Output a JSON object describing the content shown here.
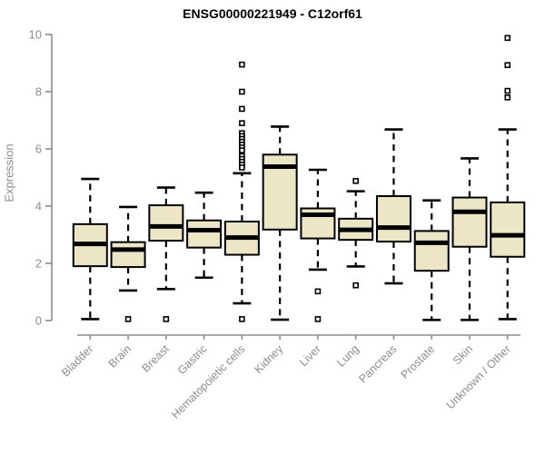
{
  "chart_data": {
    "type": "boxplot",
    "title": "ENSG00000221949 - C12orf61",
    "ylabel": "Expression",
    "ylim": [
      0,
      10
    ],
    "yticks": [
      0,
      2,
      4,
      6,
      8,
      10
    ],
    "grid": false,
    "legend": false,
    "categories": [
      "Bladder",
      "Brain",
      "Breast",
      "Gastric",
      "Hematopoietic cells",
      "Kidney",
      "Liver",
      "Lung",
      "Pancreas",
      "Prostate",
      "Skin",
      "Unknown / Other"
    ],
    "series": [
      {
        "category": "Bladder",
        "whisker_low": 0.05,
        "q1": 1.9,
        "median": 2.68,
        "q3": 3.37,
        "whisker_high": 4.95,
        "outliers": []
      },
      {
        "category": "Brain",
        "whisker_low": 1.05,
        "q1": 1.87,
        "median": 2.48,
        "q3": 2.74,
        "whisker_high": 3.97,
        "outliers": [
          0.05
        ]
      },
      {
        "category": "Breast",
        "whisker_low": 1.1,
        "q1": 2.79,
        "median": 3.29,
        "q3": 4.03,
        "whisker_high": 4.65,
        "outliers": [
          0.05
        ]
      },
      {
        "category": "Gastric",
        "whisker_low": 1.5,
        "q1": 2.55,
        "median": 3.16,
        "q3": 3.5,
        "whisker_high": 4.47,
        "outliers": []
      },
      {
        "category": "Hematopoietic cells",
        "whisker_low": 0.6,
        "q1": 2.3,
        "median": 2.9,
        "q3": 3.46,
        "whisker_high": 5.15,
        "outliers": [
          8.95,
          8.0,
          7.4,
          6.9,
          6.55,
          6.45,
          6.35,
          6.25,
          6.15,
          6.05,
          5.95,
          5.75,
          5.65,
          5.55,
          5.45,
          5.35,
          0.05
        ]
      },
      {
        "category": "Kidney",
        "whisker_low": 0.03,
        "q1": 3.18,
        "median": 5.38,
        "q3": 5.8,
        "whisker_high": 6.78,
        "outliers": []
      },
      {
        "category": "Liver",
        "whisker_low": 1.78,
        "q1": 2.87,
        "median": 3.7,
        "q3": 3.92,
        "whisker_high": 5.27,
        "outliers": [
          1.02,
          0.05
        ]
      },
      {
        "category": "Lung",
        "whisker_low": 1.89,
        "q1": 2.82,
        "median": 3.17,
        "q3": 3.56,
        "whisker_high": 4.52,
        "outliers": [
          4.88,
          1.23
        ]
      },
      {
        "category": "Pancreas",
        "whisker_low": 1.3,
        "q1": 2.76,
        "median": 3.25,
        "q3": 4.35,
        "whisker_high": 6.68,
        "outliers": []
      },
      {
        "category": "Prostate",
        "whisker_low": 0.02,
        "q1": 1.74,
        "median": 2.72,
        "q3": 3.13,
        "whisker_high": 4.2,
        "outliers": []
      },
      {
        "category": "Skin",
        "whisker_low": 0.02,
        "q1": 2.58,
        "median": 3.8,
        "q3": 4.3,
        "whisker_high": 5.67,
        "outliers": []
      },
      {
        "category": "Unknown / Other",
        "whisker_low": 0.05,
        "q1": 2.23,
        "median": 2.98,
        "q3": 4.13,
        "whisker_high": 6.68,
        "outliers": [
          9.88,
          8.93,
          8.03,
          7.8
        ]
      }
    ],
    "colors": {
      "box_fill": "#EDE6C6",
      "box_stroke": "#000000",
      "median": "#000000",
      "whisker": "#000000",
      "outlier_fill": "#FFFFFF",
      "axis": "#8C8C8C",
      "tick_text": "#8C8C8C",
      "title_text": "#000000",
      "background": "#FFFFFF"
    }
  }
}
